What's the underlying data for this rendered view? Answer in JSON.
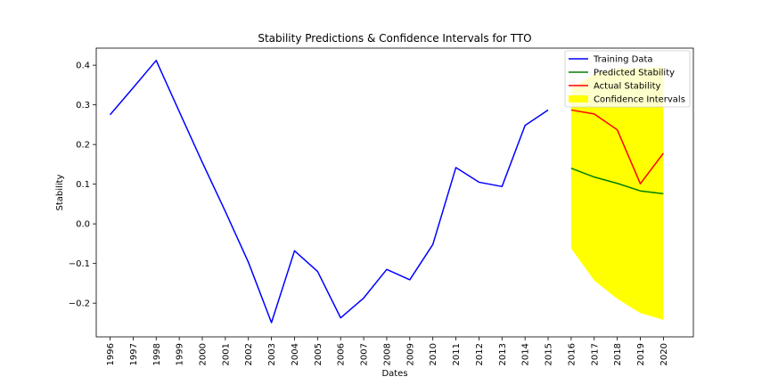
{
  "chart_data": {
    "type": "line",
    "title": "Stability Predictions & Confidence Intervals for TTO",
    "xlabel": "Dates",
    "ylabel": "Stability",
    "xlim": [
      1995.4,
      2021.3
    ],
    "ylim": [
      -0.285,
      0.443
    ],
    "x_ticks": [
      "1996",
      "1997",
      "1998",
      "1999",
      "2000",
      "2001",
      "2002",
      "2003",
      "2004",
      "2005",
      "2006",
      "2007",
      "2008",
      "2009",
      "2010",
      "2011",
      "2012",
      "2013",
      "2014",
      "2015",
      "2016",
      "2017",
      "2018",
      "2019",
      "2020"
    ],
    "y_ticks": [
      -0.2,
      -0.1,
      0.0,
      0.1,
      0.2,
      0.3,
      0.4
    ],
    "y_tick_labels": [
      "−0.2",
      "−0.1",
      "0.0",
      "0.1",
      "0.2",
      "0.3",
      "0.4"
    ],
    "grid": false,
    "legend_position": "top-right",
    "series": [
      {
        "name": "Training Data",
        "color": "#0000ff",
        "x": [
          1996,
          1997,
          1998,
          1999,
          2000,
          2001,
          2002,
          2003,
          2004,
          2005,
          2006,
          2007,
          2008,
          2009,
          2010,
          2011,
          2012,
          2013,
          2014,
          2015
        ],
        "values": [
          0.275,
          0.343,
          0.412,
          0.283,
          0.155,
          0.031,
          -0.097,
          -0.249,
          -0.068,
          -0.12,
          -0.237,
          -0.187,
          -0.115,
          -0.141,
          -0.052,
          0.142,
          0.105,
          0.094,
          0.248,
          0.287
        ]
      },
      {
        "name": "Predicted Stability",
        "color": "#008000",
        "x": [
          2016,
          2017,
          2018,
          2019,
          2020
        ],
        "values": [
          0.14,
          0.118,
          0.102,
          0.083,
          0.076
        ]
      },
      {
        "name": "Actual Stability",
        "color": "#ff0000",
        "x": [
          2016,
          2017,
          2018,
          2019,
          2020
        ],
        "values": [
          0.287,
          0.277,
          0.237,
          0.101,
          0.178
        ]
      }
    ],
    "confidence_interval": {
      "name": "Confidence Intervals",
      "color": "#ffff00",
      "x": [
        2016,
        2017,
        2018,
        2019,
        2020
      ],
      "lower": [
        -0.062,
        -0.143,
        -0.189,
        -0.225,
        -0.242
      ],
      "upper": [
        0.342,
        0.378,
        0.392,
        0.392,
        0.395
      ]
    }
  }
}
